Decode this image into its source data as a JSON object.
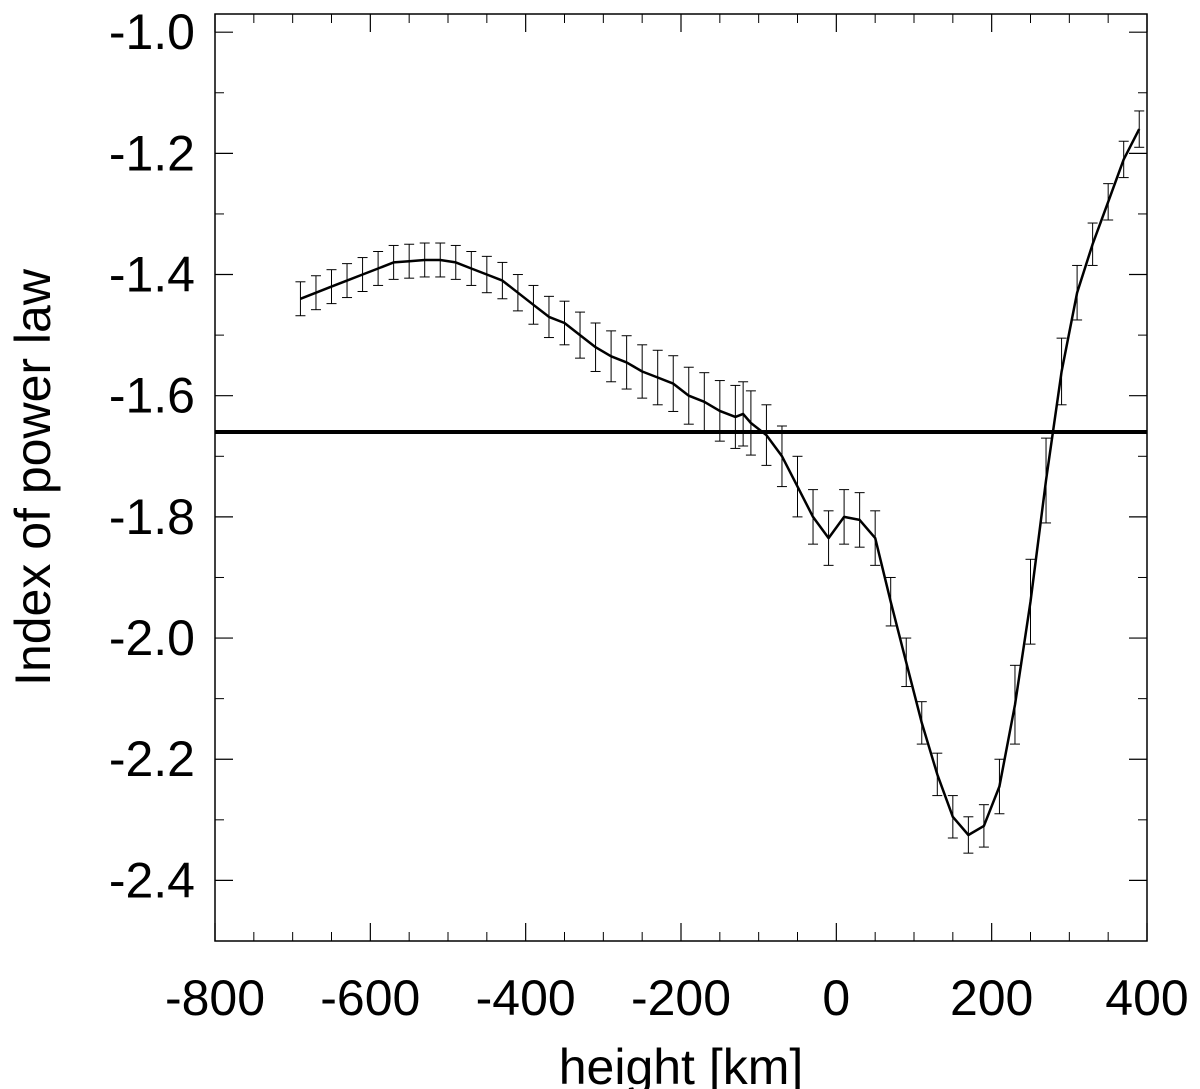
{
  "chart_data": {
    "type": "line",
    "xlabel": "height [km]",
    "ylabel": "Index of power law",
    "xlim": [
      -800,
      400
    ],
    "ylim": [
      -2.5,
      -0.97
    ],
    "x_ticks": [
      -800,
      -600,
      -400,
      -200,
      0,
      200,
      400
    ],
    "x_tick_labels": [
      "-800",
      "-600",
      "-400",
      "-200",
      "0",
      "200",
      "400"
    ],
    "y_ticks": [
      -1.0,
      -1.2,
      -1.4,
      -1.6,
      -1.8,
      -2.0,
      -2.2,
      -2.4
    ],
    "y_tick_labels": [
      "-1.0",
      "-1.2",
      "-1.4",
      "-1.6",
      "-1.8",
      "-2.0",
      "-2.2",
      "-2.4"
    ],
    "grid": false,
    "reference_line": {
      "y": -1.66
    },
    "series": [
      {
        "x": [
          -690,
          -670,
          -650,
          -630,
          -610,
          -590,
          -570,
          -550,
          -530,
          -510,
          -490,
          -470,
          -450,
          -430,
          -410,
          -390,
          -370,
          -350,
          -330,
          -310,
          -290,
          -270,
          -250,
          -230,
          -210,
          -190,
          -170,
          -150,
          -130,
          -120,
          -110,
          -90,
          -70,
          -50,
          -30,
          -10,
          10,
          30,
          50,
          70,
          90,
          110,
          130,
          150,
          170,
          190,
          210,
          230,
          250,
          270,
          290,
          310,
          330,
          350,
          370,
          390
        ],
        "y": [
          -1.44,
          -1.43,
          -1.42,
          -1.41,
          -1.4,
          -1.39,
          -1.38,
          -1.378,
          -1.376,
          -1.376,
          -1.38,
          -1.39,
          -1.4,
          -1.41,
          -1.43,
          -1.45,
          -1.47,
          -1.48,
          -1.5,
          -1.52,
          -1.535,
          -1.545,
          -1.56,
          -1.57,
          -1.58,
          -1.6,
          -1.61,
          -1.625,
          -1.635,
          -1.63,
          -1.645,
          -1.665,
          -1.7,
          -1.75,
          -1.8,
          -1.835,
          -1.8,
          -1.805,
          -1.835,
          -1.94,
          -2.04,
          -2.14,
          -2.225,
          -2.295,
          -2.325,
          -2.31,
          -2.245,
          -2.11,
          -1.94,
          -1.74,
          -1.56,
          -1.43,
          -1.35,
          -1.28,
          -1.21,
          -1.16
        ],
        "err": [
          0.028,
          0.028,
          0.028,
          0.028,
          0.028,
          0.028,
          0.028,
          0.028,
          0.028,
          0.028,
          0.028,
          0.028,
          0.03,
          0.03,
          0.03,
          0.032,
          0.034,
          0.036,
          0.038,
          0.04,
          0.042,
          0.044,
          0.044,
          0.045,
          0.046,
          0.047,
          0.048,
          0.05,
          0.052,
          0.053,
          0.053,
          0.05,
          0.05,
          0.05,
          0.045,
          0.045,
          0.045,
          0.045,
          0.045,
          0.04,
          0.04,
          0.035,
          0.035,
          0.035,
          0.03,
          0.035,
          0.045,
          0.065,
          0.07,
          0.07,
          0.055,
          0.045,
          0.035,
          0.03,
          0.03,
          0.03
        ]
      }
    ]
  }
}
